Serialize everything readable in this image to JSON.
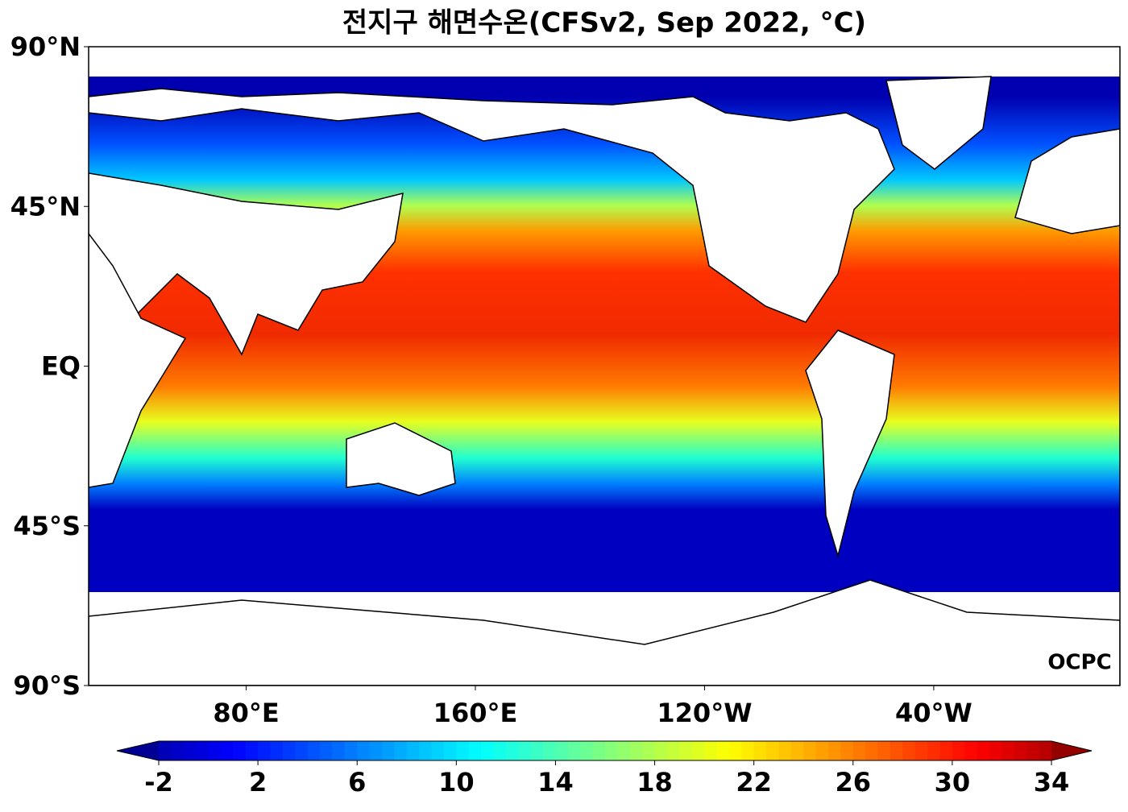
{
  "title": "전지구 해면수온(CFSv2, Sep 2022, °C)",
  "map": {
    "lon_range": [
      25,
      385
    ],
    "lat_range": [
      -90,
      90
    ],
    "lat_ticks": [
      {
        "value": 90,
        "label": "90°N"
      },
      {
        "value": 45,
        "label": "45°N"
      },
      {
        "value": 0,
        "label": "EQ"
      },
      {
        "value": -45,
        "label": "45°S"
      },
      {
        "value": -90,
        "label": "90°S"
      }
    ],
    "lon_ticks": [
      {
        "value": 80,
        "label": "80°E"
      },
      {
        "value": 160,
        "label": "160°E"
      },
      {
        "value": 240,
        "label": "120°W"
      },
      {
        "value": 320,
        "label": "40°W"
      }
    ],
    "logo": "OCPC"
  },
  "colorbar": {
    "range": [
      -2,
      34
    ],
    "ticks": [
      -2,
      2,
      6,
      10,
      14,
      18,
      22,
      26,
      30,
      34
    ]
  }
}
